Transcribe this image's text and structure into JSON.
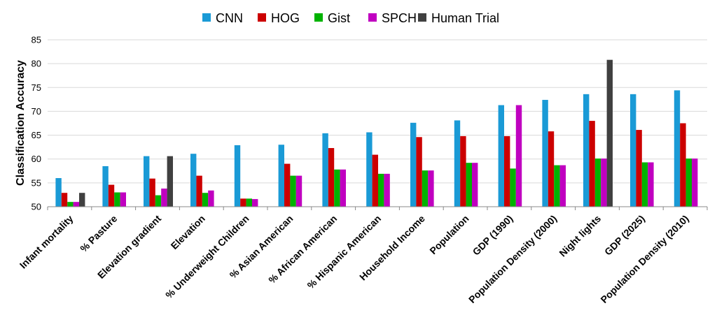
{
  "chart_data": {
    "type": "bar",
    "title": "",
    "xlabel": "",
    "ylabel": "Classification Accuracy",
    "ylim": [
      50,
      85
    ],
    "yticks": [
      50,
      55,
      60,
      65,
      70,
      75,
      80,
      85
    ],
    "grid": "horizontal",
    "legend_position": "top",
    "categories": [
      "Infant mortality",
      "% Pasture",
      "Elevation gradient",
      "Elevation",
      "% Underweight Children",
      "% Asian American",
      "% African American",
      "% Hispanic American",
      "Household Income",
      "Population",
      "GDP (1990)",
      "Population Density (2000)",
      "Night lights",
      "GDP (2025)",
      "Population Density (2010)"
    ],
    "series": [
      {
        "name": "CNN",
        "color": "#1a9ad6",
        "values": [
          56,
          58.5,
          60.6,
          61.1,
          62.9,
          63,
          65.4,
          65.6,
          67.6,
          68.1,
          71.3,
          72.4,
          73.6,
          73.6,
          74.4
        ]
      },
      {
        "name": "HOG",
        "color": "#cc0000",
        "values": [
          52.9,
          54.6,
          55.9,
          56.5,
          51.7,
          59,
          62.3,
          60.9,
          64.6,
          64.8,
          64.8,
          65.8,
          68,
          66.1,
          67.5
        ]
      },
      {
        "name": "Gist",
        "color": "#00b300",
        "values": [
          51,
          53,
          52.4,
          52.9,
          51.7,
          56.5,
          57.8,
          56.9,
          57.6,
          59.2,
          58,
          58.7,
          60.1,
          59.3,
          60.1
        ]
      },
      {
        "name": "SPCH",
        "color": "#c000c0",
        "values": [
          51,
          53,
          53.8,
          53.4,
          51.6,
          56.5,
          57.8,
          56.9,
          57.6,
          59.2,
          71.3,
          58.7,
          60.1,
          59.3,
          60.1
        ]
      },
      {
        "name": "Human Trial",
        "color": "#404040",
        "values": [
          52.9,
          null,
          60.6,
          null,
          null,
          null,
          null,
          null,
          null,
          null,
          null,
          null,
          80.8,
          null,
          null
        ]
      }
    ]
  }
}
